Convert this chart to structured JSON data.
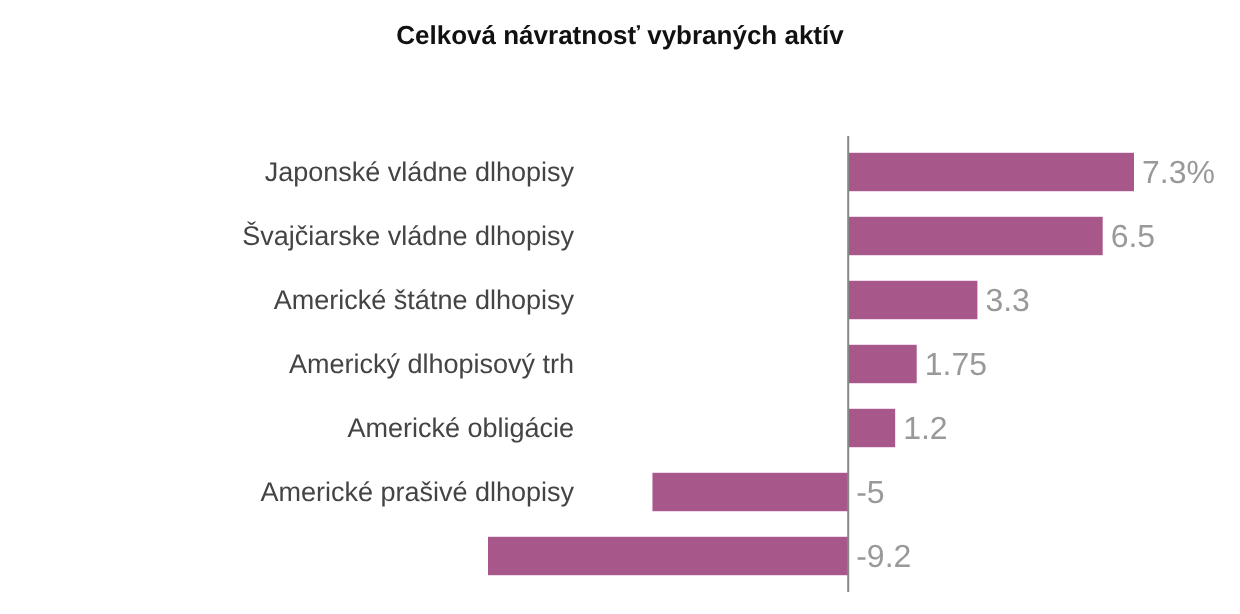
{
  "chart_data": {
    "type": "bar",
    "orientation": "horizontal",
    "title": "Celková návratnosť vybraných aktív",
    "categories": [
      "Japonské vládne dlhopisy",
      "Švajčiarske vládne dlhopisy",
      "Americké štátne dlhopisy",
      "Americký dlhopisový trh",
      "Americké obligácie",
      "Americké prašivé dlhopisy",
      null
    ],
    "values": [
      7.3,
      6.5,
      3.3,
      1.75,
      1.2,
      -5,
      -9.2
    ],
    "value_labels": [
      "7.3%",
      "6.5",
      "3.3",
      "1.75",
      "1.2",
      "-5",
      "-9.2"
    ],
    "color": "#a8578a"
  }
}
